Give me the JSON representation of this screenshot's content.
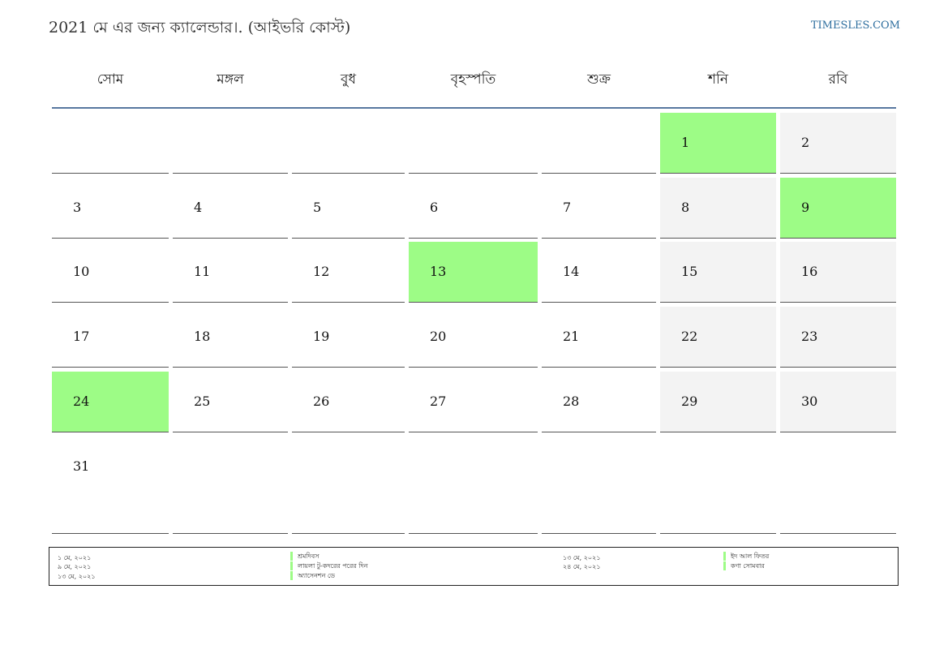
{
  "header": {
    "title": "2021 মে এর জন্য ক্যালেন্ডার।. (আইভরি কোস্ট)",
    "site": "TIMESLES.COM"
  },
  "weekdays": [
    "সোম",
    "মঙ্গল",
    "বুধ",
    "বৃহস্পতি",
    "শুক্র",
    "শনি",
    "রবি"
  ],
  "weeks": [
    [
      {
        "day": "",
        "type": "blank"
      },
      {
        "day": "",
        "type": "blank"
      },
      {
        "day": "",
        "type": "blank"
      },
      {
        "day": "",
        "type": "blank"
      },
      {
        "day": "",
        "type": "blank"
      },
      {
        "day": "1",
        "type": "holiday"
      },
      {
        "day": "2",
        "type": "weekend"
      }
    ],
    [
      {
        "day": "3",
        "type": "normal"
      },
      {
        "day": "4",
        "type": "normal"
      },
      {
        "day": "5",
        "type": "normal"
      },
      {
        "day": "6",
        "type": "normal"
      },
      {
        "day": "7",
        "type": "normal"
      },
      {
        "day": "8",
        "type": "weekend"
      },
      {
        "day": "9",
        "type": "holiday"
      }
    ],
    [
      {
        "day": "10",
        "type": "normal"
      },
      {
        "day": "11",
        "type": "normal"
      },
      {
        "day": "12",
        "type": "normal"
      },
      {
        "day": "13",
        "type": "holiday"
      },
      {
        "day": "14",
        "type": "normal"
      },
      {
        "day": "15",
        "type": "weekend"
      },
      {
        "day": "16",
        "type": "weekend"
      }
    ],
    [
      {
        "day": "17",
        "type": "normal"
      },
      {
        "day": "18",
        "type": "normal"
      },
      {
        "day": "19",
        "type": "normal"
      },
      {
        "day": "20",
        "type": "normal"
      },
      {
        "day": "21",
        "type": "normal"
      },
      {
        "day": "22",
        "type": "weekend"
      },
      {
        "day": "23",
        "type": "weekend"
      }
    ],
    [
      {
        "day": "24",
        "type": "holiday"
      },
      {
        "day": "25",
        "type": "normal"
      },
      {
        "day": "26",
        "type": "normal"
      },
      {
        "day": "27",
        "type": "normal"
      },
      {
        "day": "28",
        "type": "normal"
      },
      {
        "day": "29",
        "type": "weekend"
      },
      {
        "day": "30",
        "type": "weekend"
      }
    ],
    [
      {
        "day": "31",
        "type": "normal"
      },
      {
        "day": "",
        "type": "blank"
      },
      {
        "day": "",
        "type": "blank"
      },
      {
        "day": "",
        "type": "blank"
      },
      {
        "day": "",
        "type": "blank"
      },
      {
        "day": "",
        "type": "blank"
      },
      {
        "day": "",
        "type": "blank"
      }
    ]
  ],
  "holidays": [
    {
      "date": "১ মে, ২০২১",
      "name": "শ্রমদিবস"
    },
    {
      "date": "৯ মে, ২০২১",
      "name": "লায়লা টু-কদরের পরের দিন"
    },
    {
      "date": "১৩ মে, ২০২১",
      "name": "অ্যাসেনশন ডে"
    },
    {
      "date": "১৩ মে, ২০২১",
      "name": "ইদ আল ফিতর"
    },
    {
      "date": "২৪ মে, ২০২১",
      "name": "কণা সোমবার"
    }
  ],
  "colors": {
    "holiday": "#9dfc86",
    "weekend": "#f3f3f3",
    "header_rule": "#5878a0",
    "site_link": "#2f6f9f"
  }
}
